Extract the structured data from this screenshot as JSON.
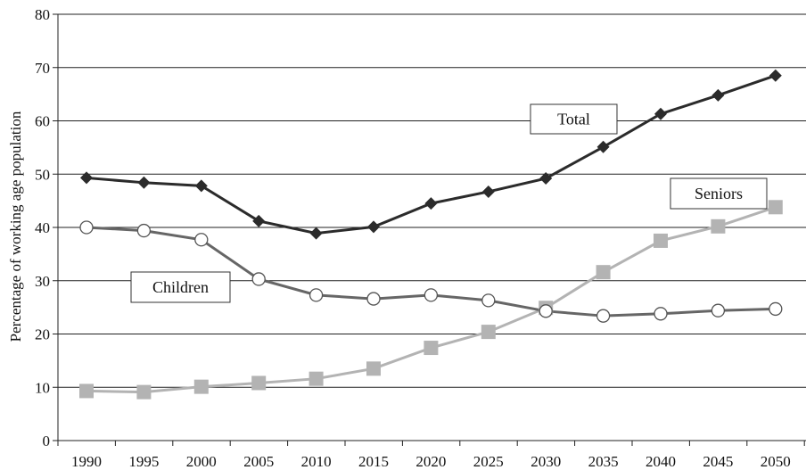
{
  "chart_data": {
    "type": "line",
    "x": [
      "1990",
      "1995",
      "2000",
      "2005",
      "2010",
      "2015",
      "2020",
      "2025",
      "2030",
      "2035",
      "2040",
      "2045",
      "2050"
    ],
    "ylabel": "Percentage of working age population",
    "ylim": [
      0,
      80
    ],
    "yticks": [
      0,
      10,
      20,
      30,
      40,
      50,
      60,
      70,
      80
    ],
    "grid": "horizontal",
    "series": [
      {
        "name": "Total",
        "color": "#2b2b2b",
        "marker": "diamond",
        "values": [
          49.3,
          48.4,
          47.8,
          41.2,
          38.9,
          40.1,
          44.5,
          46.7,
          49.2,
          55.1,
          61.3,
          64.8,
          68.5
        ]
      },
      {
        "name": "Children",
        "color": "#666666",
        "marker": "open-circle",
        "values": [
          40.0,
          39.4,
          37.7,
          30.3,
          27.3,
          26.6,
          27.3,
          26.3,
          24.3,
          23.4,
          23.8,
          24.4,
          24.7
        ]
      },
      {
        "name": "Seniors",
        "color": "#b3b3b3",
        "marker": "square",
        "values": [
          9.3,
          9.1,
          10.1,
          10.8,
          11.6,
          13.5,
          17.4,
          20.4,
          24.9,
          31.6,
          37.5,
          40.2,
          43.8
        ]
      }
    ]
  }
}
